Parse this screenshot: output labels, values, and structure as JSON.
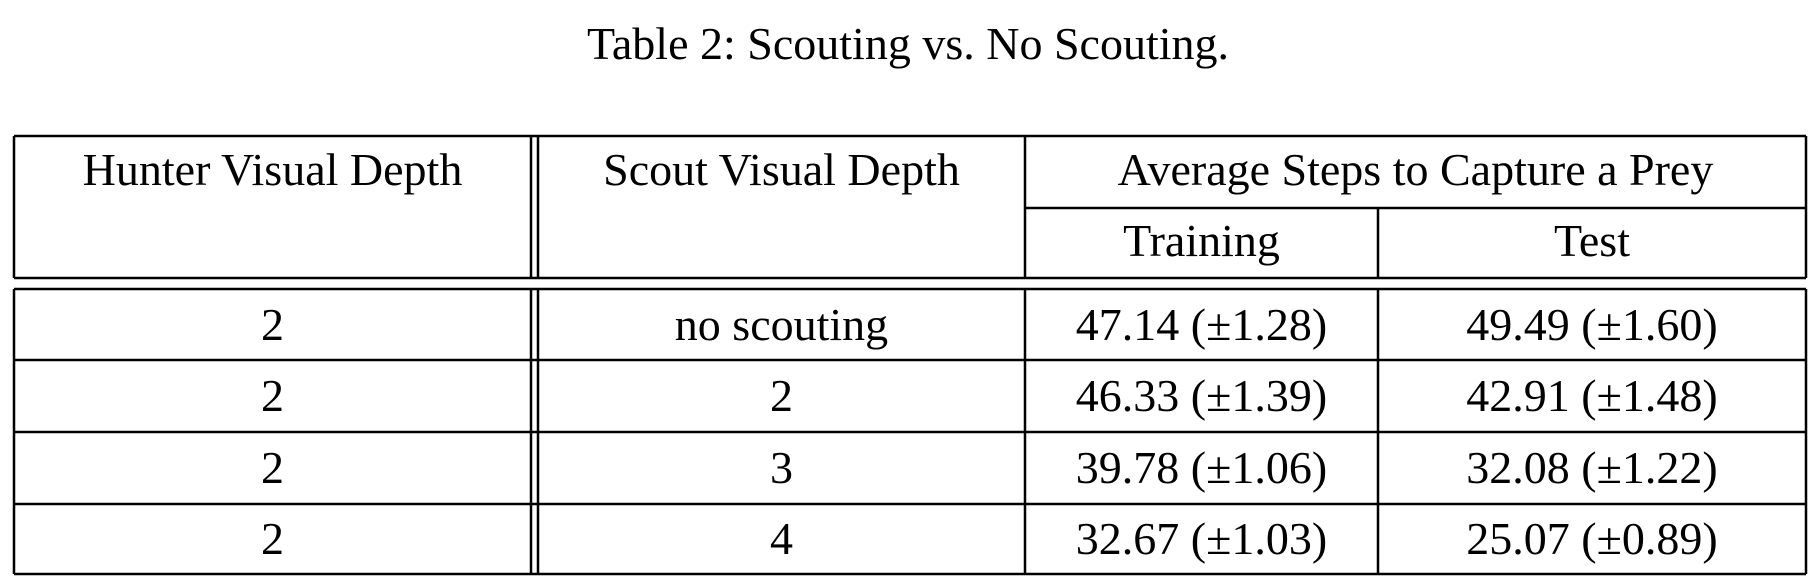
{
  "caption": "Table 2: Scouting vs. No Scouting.",
  "table": {
    "headers": {
      "hunter_visual_depth": "Hunter Visual Depth",
      "scout_visual_depth": "Scout Visual Depth",
      "average_steps": "Average Steps to Capture a Prey",
      "training": "Training",
      "test": "Test"
    },
    "rows": [
      {
        "hunter": "2",
        "scout": "no scouting",
        "training": "47.14 (±1.28)",
        "test": "49.49 (±1.60)"
      },
      {
        "hunter": "2",
        "scout": "2",
        "training": "46.33 (±1.39)",
        "test": "42.91 (±1.48)"
      },
      {
        "hunter": "2",
        "scout": "3",
        "training": "39.78 (±1.06)",
        "test": "32.08 (±1.22)"
      },
      {
        "hunter": "2",
        "scout": "4",
        "training": "32.67 (±1.03)",
        "test": "25.07 (±0.89)"
      }
    ]
  }
}
